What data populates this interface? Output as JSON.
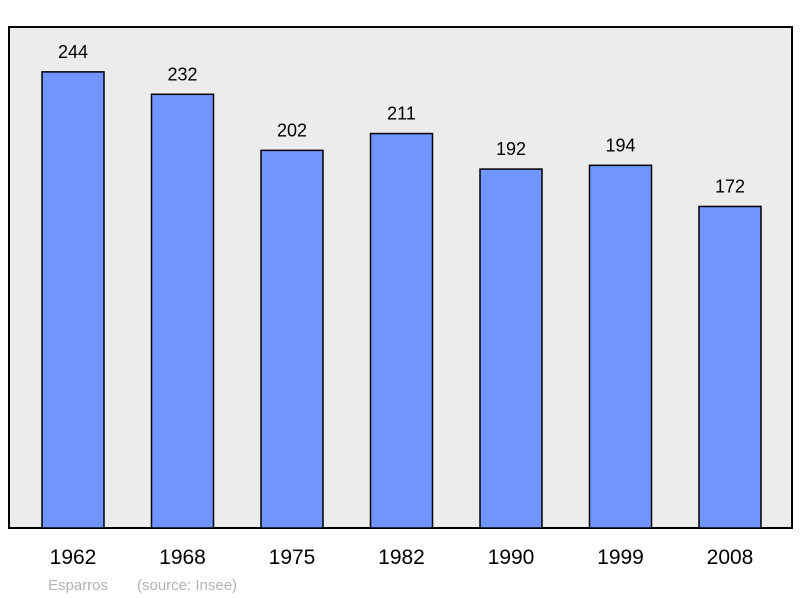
{
  "chart_data": {
    "type": "bar",
    "categories": [
      "1962",
      "1968",
      "1975",
      "1982",
      "1990",
      "1999",
      "2008"
    ],
    "values": [
      244,
      232,
      202,
      211,
      192,
      194,
      172
    ],
    "title": "",
    "xlabel": "",
    "ylabel": "",
    "ylim": [
      0,
      268
    ],
    "grid": false,
    "bar_color": "#7095ff",
    "plot_background": "#ececec",
    "data_labels": true
  },
  "footer": {
    "place": "Esparros",
    "source": "(source: Insee)"
  }
}
